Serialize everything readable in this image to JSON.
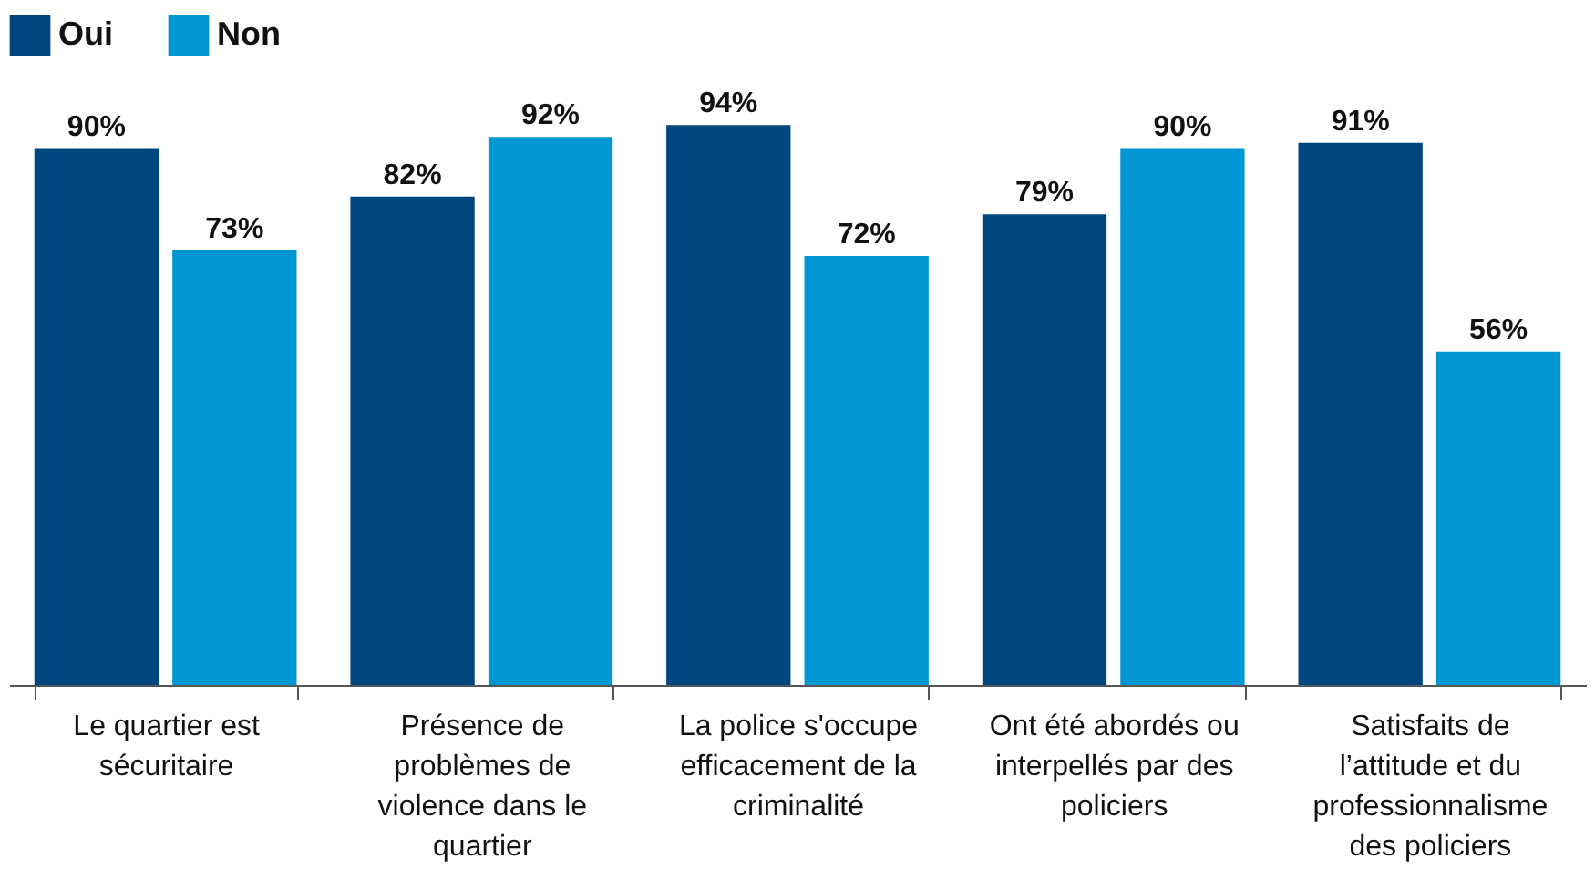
{
  "chart_data": {
    "type": "bar",
    "categories": [
      "Le quartier est sécuritaire",
      "Présence de problèmes de violence dans le quartier",
      "La police s'occupe efficacement de la criminalité",
      "Ont été abordés ou interpellés par des policiers",
      "Satisfaits de l’attitude et du professionnalisme des policiers"
    ],
    "series": [
      {
        "name": "Oui",
        "color": "#00467f",
        "values": [
          90,
          82,
          94,
          79,
          91
        ],
        "value_labels": [
          "90%",
          "82%",
          "94%",
          "79%",
          "91%"
        ]
      },
      {
        "name": "Non",
        "color": "#0095d3",
        "values": [
          73,
          92,
          72,
          90,
          56
        ],
        "value_labels": [
          "73%",
          "92%",
          "72%",
          "90%",
          "56%"
        ]
      }
    ],
    "legend": "top left",
    "grid": false
  }
}
